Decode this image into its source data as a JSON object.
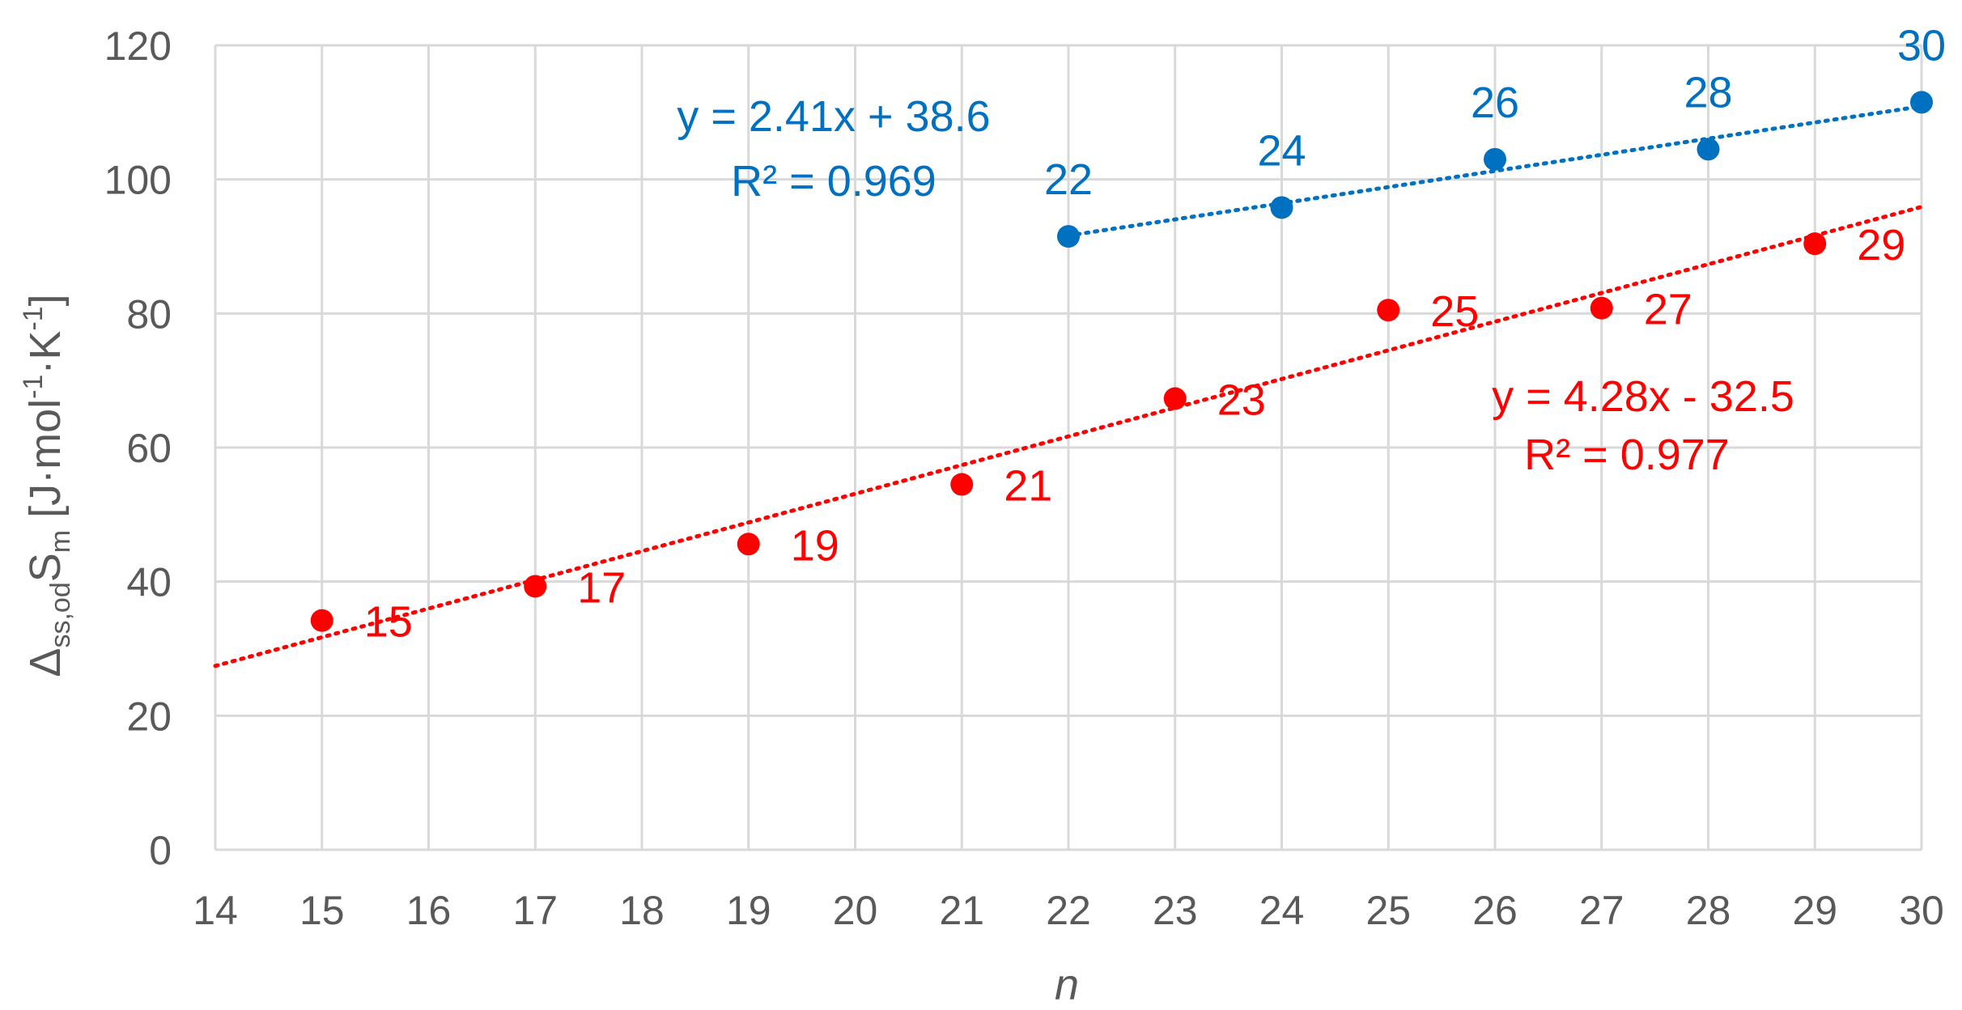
{
  "chart_data": {
    "type": "scatter",
    "title": "",
    "xlabel": "n",
    "ylabel": {
      "delta": "Δ",
      "delta_sub": "ss,od",
      "symbol": "S",
      "symbol_sub": "m",
      "unit_open": " [J·mol",
      "exp1": "-1",
      "unit_mid": "·K",
      "exp2": "-1",
      "unit_close": "]"
    },
    "xlim": [
      14,
      30
    ],
    "ylim": [
      0,
      120
    ],
    "x_ticks": [
      "14",
      "15",
      "16",
      "17",
      "18",
      "19",
      "20",
      "21",
      "22",
      "23",
      "24",
      "25",
      "26",
      "27",
      "28",
      "29",
      "30"
    ],
    "y_ticks": [
      "0",
      "20",
      "40",
      "60",
      "80",
      "100",
      "120"
    ],
    "grid": true,
    "series": [
      {
        "color": "#0070C0",
        "x": [
          22,
          24,
          26,
          28,
          30
        ],
        "y": [
          91.5,
          95.8,
          103,
          104.5,
          111.5
        ],
        "point_labels": [
          "22",
          "24",
          "26",
          "28",
          "30"
        ],
        "trendline": {
          "slope": 2.41,
          "intercept": 38.6,
          "x_range": [
            22,
            30
          ]
        },
        "equation": "y = 2.41x + 38.6",
        "r2": "R² = 0.969"
      },
      {
        "color": "#FF0000",
        "x": [
          15,
          17,
          19,
          21,
          23,
          25,
          27,
          29
        ],
        "y": [
          34.2,
          39.3,
          45.6,
          54.5,
          67.3,
          80.5,
          80.8,
          90.4
        ],
        "point_labels": [
          "15",
          "17",
          "19",
          "21",
          "23",
          "25",
          "27",
          "29"
        ],
        "trendline": {
          "slope": 4.28,
          "intercept": -32.5,
          "x_range": [
            14,
            30
          ]
        },
        "equation": "y = 4.28x - 32.5",
        "r2": "R² = 0.977"
      }
    ]
  }
}
